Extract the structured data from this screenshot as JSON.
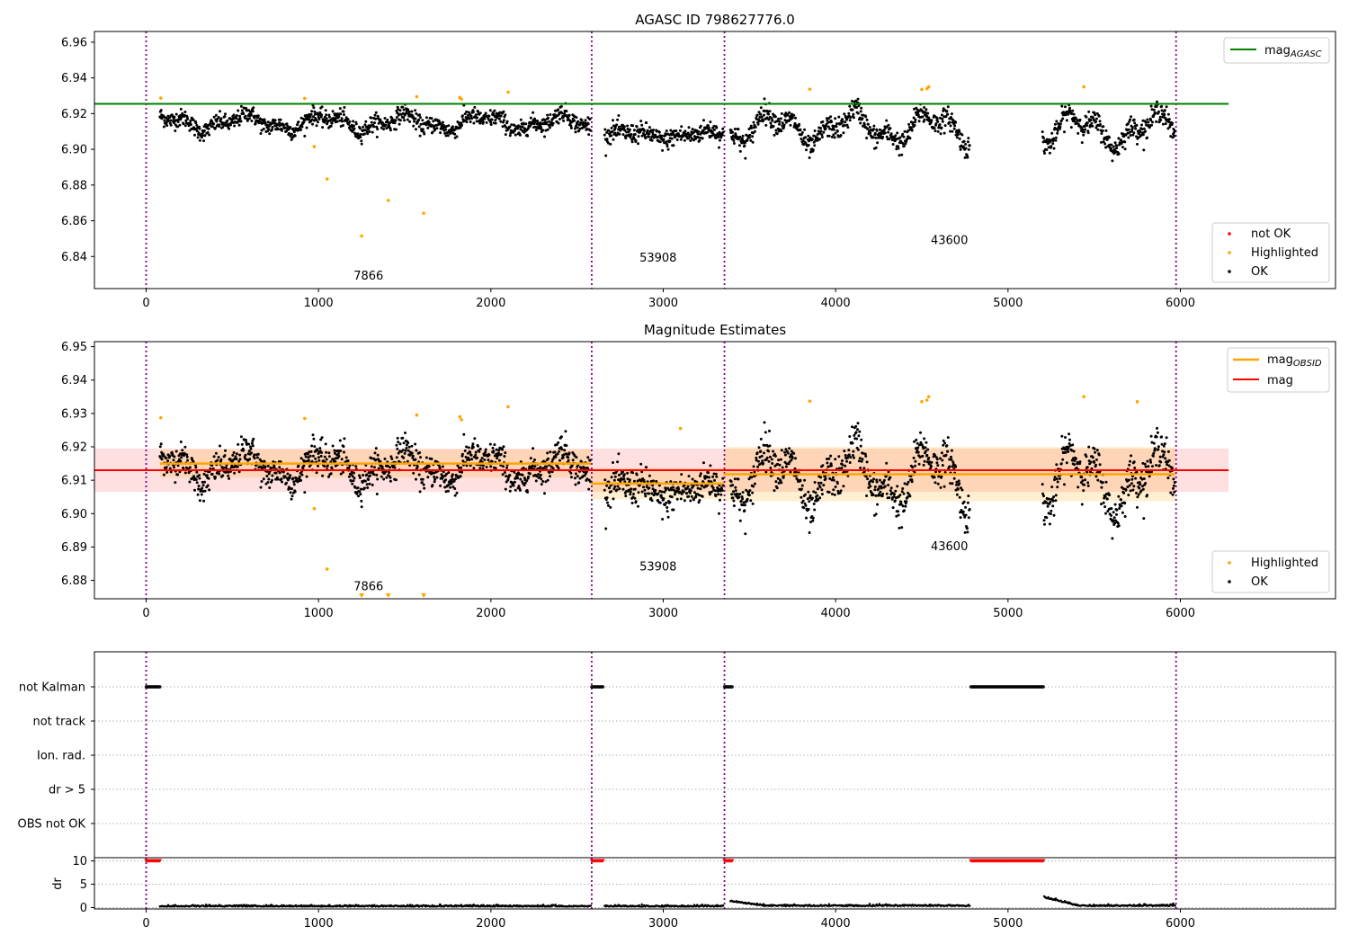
{
  "chart_data": [
    {
      "type": "scatter",
      "title": "AGASC ID 798627776.0",
      "xlim": [
        -300,
        6900
      ],
      "ylim": [
        6.822,
        6.966
      ],
      "xticks": [
        0,
        1000,
        2000,
        3000,
        4000,
        5000,
        6000
      ],
      "yticks": [
        6.84,
        6.86,
        6.88,
        6.9,
        6.92,
        6.94,
        6.96
      ],
      "ytick_labels": [
        "6.84",
        "6.86",
        "6.88",
        "6.90",
        "6.92",
        "6.94",
        "6.96"
      ],
      "obs_boundaries": [
        0,
        2585,
        3355,
        5975
      ],
      "obs_labels": [
        {
          "x": 1290,
          "y": 6.827,
          "text": "7866"
        },
        {
          "x": 2970,
          "y": 6.837,
          "text": "53908"
        },
        {
          "x": 4660,
          "y": 6.847,
          "text": "43600"
        }
      ],
      "reference_line": {
        "name": "mag",
        "subscript": "AGASC",
        "value": 6.9255,
        "x_range": [
          -300,
          6280
        ],
        "color": "#008000"
      },
      "segments": [
        {
          "x": [
            80,
            2580
          ],
          "mean": 6.915,
          "amp": 0.0035,
          "noise": 0.004
        },
        {
          "x": [
            2660,
            3350
          ],
          "mean": 6.908,
          "amp": 0.002,
          "noise": 0.0045
        },
        {
          "x": [
            3390,
            4780
          ],
          "mean": 6.912,
          "amp": 0.007,
          "noise": 0.005
        },
        {
          "x": [
            5200,
            5970
          ],
          "mean": 6.911,
          "amp": 0.007,
          "noise": 0.005
        }
      ],
      "highlighted": {
        "x": [
          85,
          920,
          975,
          1050,
          1250,
          1405,
          1570,
          1610,
          1820,
          1830,
          2100,
          3850,
          4500,
          4530,
          4540,
          5440
        ],
        "y": [
          6.9287,
          6.9285,
          6.9015,
          6.8834,
          6.8515,
          6.8714,
          6.9295,
          6.8642,
          6.929,
          6.9281,
          6.932,
          6.9337,
          6.9335,
          6.934,
          6.935,
          6.935
        ]
      },
      "legend_top": [
        {
          "label": "mag",
          "subscript": "AGASC",
          "color": "#008000"
        }
      ],
      "legend_bottom": [
        {
          "label": "not OK",
          "color": "#ff0000"
        },
        {
          "label": "Highlighted",
          "color": "#ffa500"
        },
        {
          "label": "OK",
          "color": "#000000"
        }
      ]
    },
    {
      "type": "scatter",
      "title": "Magnitude Estimates",
      "xlim": [
        -300,
        6900
      ],
      "ylim": [
        6.8745,
        6.9515
      ],
      "xticks": [
        0,
        1000,
        2000,
        3000,
        4000,
        5000,
        6000
      ],
      "yticks": [
        6.88,
        6.89,
        6.9,
        6.91,
        6.92,
        6.93,
        6.94,
        6.95
      ],
      "ytick_labels": [
        "6.88",
        "6.89",
        "6.90",
        "6.91",
        "6.92",
        "6.93",
        "6.94",
        "6.95"
      ],
      "obs_boundaries": [
        0,
        2585,
        3355,
        5975
      ],
      "obs_labels": [
        {
          "x": 1290,
          "y": 6.877,
          "text": "7866"
        },
        {
          "x": 2970,
          "y": 6.883,
          "text": "53908"
        },
        {
          "x": 4660,
          "y": 6.889,
          "text": "43600"
        }
      ],
      "mag_line": {
        "name": "mag",
        "value": 6.913,
        "band": [
          6.9065,
          6.9195
        ],
        "x_range": [
          -300,
          6280
        ],
        "color": "#ff0000"
      },
      "obsid_lines": [
        {
          "x": [
            80,
            2580
          ],
          "value": 6.915,
          "band": [
            6.9108,
            6.9192
          ]
        },
        {
          "x": [
            2580,
            3350
          ],
          "value": 6.909,
          "band": [
            6.9043,
            6.9137
          ]
        },
        {
          "x": [
            3350,
            5970
          ],
          "value": 6.9118,
          "band": [
            6.9037,
            6.9199
          ]
        }
      ],
      "obsid_color": "#ffa500",
      "highlighted": {
        "x": [
          85,
          920,
          975,
          1050,
          1570,
          1820,
          1830,
          2100,
          3100,
          3850,
          4500,
          4530,
          4540,
          5440,
          5750
        ],
        "y": [
          6.9287,
          6.9285,
          6.9015,
          6.8834,
          6.9295,
          6.929,
          6.9281,
          6.932,
          6.9255,
          6.9337,
          6.9335,
          6.934,
          6.935,
          6.935,
          6.9335
        ]
      },
      "below_range_markers": [
        1250,
        1405,
        1610
      ],
      "legend_top": [
        {
          "label": "mag",
          "subscript": "OBSID",
          "color": "#ffa500"
        },
        {
          "label": "mag",
          "color": "#ff0000"
        }
      ],
      "legend_bottom": [
        {
          "label": "Highlighted",
          "color": "#ffa500"
        },
        {
          "label": "OK",
          "color": "#000000"
        }
      ]
    },
    {
      "type": "scatter",
      "title": "",
      "xlim": [
        -300,
        6900
      ],
      "flag_rows": [
        "not Kalman",
        "not track",
        "Ion. rad.",
        "dr > 5",
        "OBS not OK"
      ],
      "not_kalman_ranges": [
        [
          0,
          80
        ],
        [
          2585,
          2650
        ],
        [
          3355,
          3400
        ],
        [
          4785,
          5205
        ]
      ],
      "obs_boundaries": [
        0,
        2585,
        3355,
        5975
      ]
    },
    {
      "type": "scatter",
      "title": "",
      "ylabel": "dr",
      "xlim": [
        -300,
        6900
      ],
      "ylim": [
        -0.3,
        10.7
      ],
      "yticks": [
        0,
        5,
        10
      ],
      "ytick_labels": [
        "0",
        "5",
        "10"
      ],
      "xticks": [
        0,
        1000,
        2000,
        3000,
        4000,
        5000,
        6000
      ],
      "obs_boundaries": [
        0,
        2585,
        3355,
        5975
      ],
      "capped_ranges": [
        [
          0,
          80
        ],
        [
          2585,
          2650
        ],
        [
          3355,
          3400
        ],
        [
          4785,
          5205
        ]
      ],
      "cap_value": 10,
      "dr_segments": [
        {
          "x": [
            80,
            2580
          ],
          "level": 0.2
        },
        {
          "x": [
            2660,
            3350
          ],
          "level": 0.2
        },
        {
          "x": [
            3390,
            4780
          ],
          "level": 0.3,
          "start_bump": 1.0
        },
        {
          "x": [
            5210,
            5970
          ],
          "level": 0.3,
          "start_bump": 1.8
        }
      ]
    }
  ]
}
